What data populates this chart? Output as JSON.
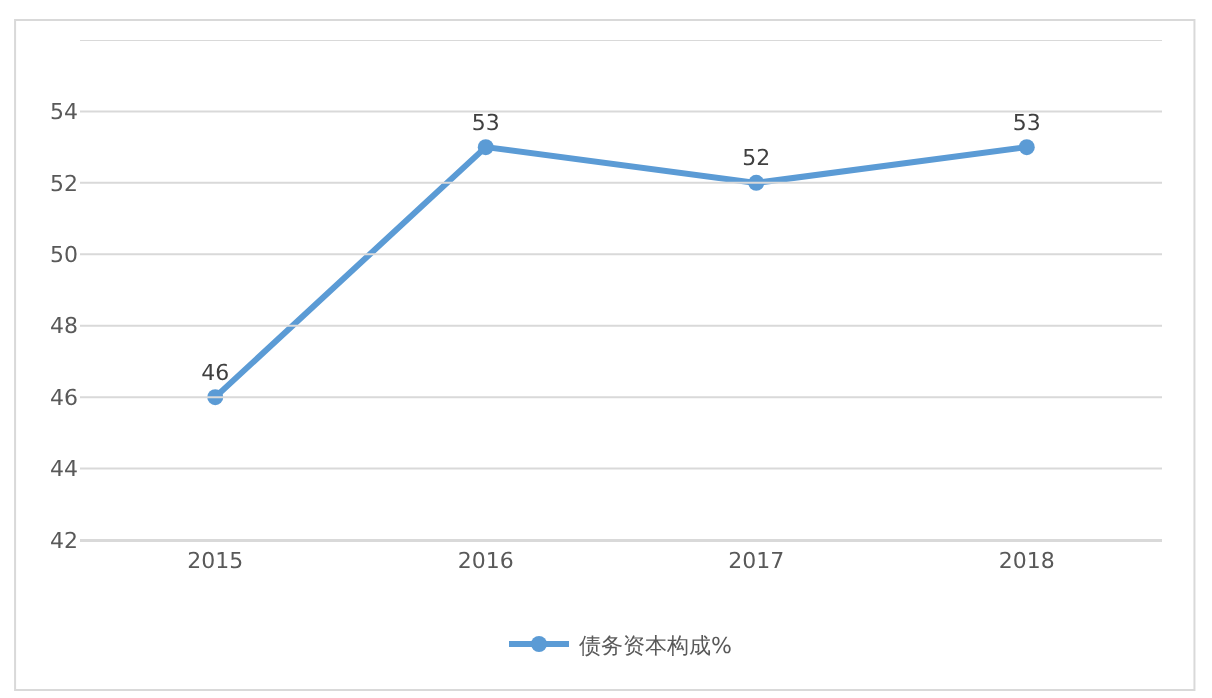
{
  "chart_data": {
    "type": "line",
    "categories": [
      "2015",
      "2016",
      "2017",
      "2018"
    ],
    "series": [
      {
        "name": "债务资本构成%",
        "color": "#5b9bd5",
        "values": [
          46,
          53,
          52,
          53
        ]
      }
    ],
    "ylim": [
      42,
      56
    ],
    "yticks": [
      42,
      44,
      46,
      48,
      50,
      52,
      54,
      {
        "value": 56,
        "label": null
      }
    ],
    "grid": "y",
    "legend": "bottom",
    "marker": "circle",
    "line_style": "solid",
    "data_labels": true
  }
}
